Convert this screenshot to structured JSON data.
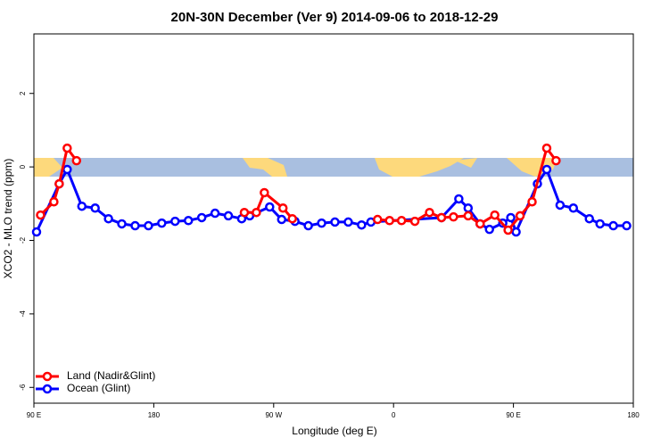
{
  "chart_data": {
    "type": "line",
    "title": "20N-30N December (Ver 9)   2014-09-06 to 2018-12-29",
    "x_label": "Longitude (deg E)",
    "y_label": "XCO2 - MLO trend (ppm)",
    "xlim": [
      90,
      540
    ],
    "ylim": [
      -6.43,
      3.62
    ],
    "xticks": [
      {
        "value": 90,
        "label": "90 E"
      },
      180,
      {
        "value": 270,
        "label": "90 W"
      },
      {
        "value": 360,
        "label": "0"
      },
      {
        "value": 450,
        "label": "90 E"
      },
      180
    ],
    "yticks": [
      -6,
      -4,
      -2,
      0,
      2
    ],
    "legend": "bottom-left",
    "series": [
      {
        "name": "Land (Nadir&Glint)",
        "color": "#ff0000",
        "x": [
          95,
          105,
          109,
          115,
          122,
          185,
          248,
          257,
          263,
          277,
          284,
          316,
          348,
          357,
          366,
          376,
          387,
          396,
          405,
          416,
          425,
          436,
          446,
          455,
          464,
          475,
          482
        ],
        "values": [
          -1.31,
          -0.95,
          -0.46,
          0.51,
          0.17,
          null,
          -1.24,
          -1.24,
          -0.7,
          -1.12,
          -1.41,
          null,
          -1.43,
          -1.46,
          -1.46,
          -1.48,
          -1.24,
          -1.38,
          -1.36,
          -1.33,
          -1.55,
          -1.31,
          -1.72,
          -1.33,
          -0.95,
          0.51,
          0.17
        ]
      },
      {
        "name": "Ocean (Glint)",
        "color": "#0000ff",
        "x": [
          92,
          109,
          115,
          126,
          136,
          146,
          156,
          166,
          176,
          186,
          196,
          206,
          216,
          226,
          236,
          246,
          252,
          267,
          276,
          286,
          296,
          306,
          316,
          326,
          336,
          343,
          396,
          409,
          416,
          425,
          432,
          442,
          448,
          452,
          468,
          475,
          485,
          495,
          507,
          515,
          525,
          535
        ],
        "values": [
          -1.77,
          -0.46,
          -0.07,
          -1.07,
          -1.12,
          -1.41,
          -1.55,
          -1.6,
          -1.6,
          -1.53,
          -1.48,
          -1.46,
          -1.38,
          -1.26,
          -1.33,
          -1.41,
          -1.33,
          -1.09,
          -1.43,
          -1.48,
          -1.6,
          -1.53,
          -1.5,
          -1.5,
          -1.58,
          -1.5,
          -1.38,
          -0.87,
          -1.12,
          -1.55,
          -1.7,
          -1.53,
          -1.38,
          -1.77,
          -0.46,
          -0.07,
          -1.04,
          -1.12,
          -1.41,
          -1.55,
          -1.6,
          -1.6
        ]
      }
    ]
  }
}
